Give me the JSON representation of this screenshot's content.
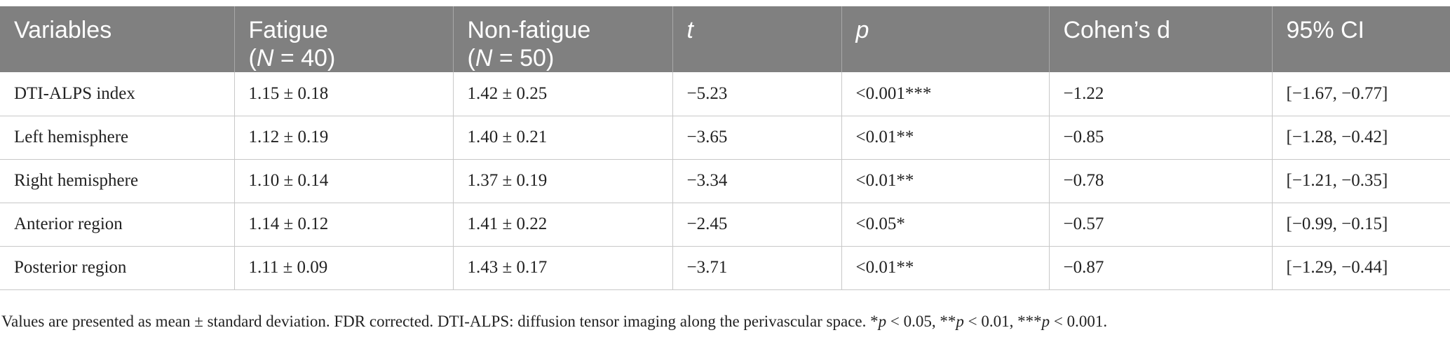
{
  "table": {
    "header": [
      [
        [
          {
            "text": "Variables",
            "italic": false
          }
        ]
      ],
      [
        [
          {
            "text": "Fatigue",
            "italic": false
          }
        ],
        [
          {
            "text": "(",
            "italic": false
          },
          {
            "text": "N",
            "italic": true
          },
          {
            "text": " = 40)",
            "italic": false
          }
        ]
      ],
      [
        [
          {
            "text": "Non-fatigue",
            "italic": false
          }
        ],
        [
          {
            "text": "(",
            "italic": false
          },
          {
            "text": "N",
            "italic": true
          },
          {
            "text": " = 50)",
            "italic": false
          }
        ]
      ],
      [
        [
          {
            "text": "t",
            "italic": true
          }
        ]
      ],
      [
        [
          {
            "text": "p",
            "italic": true
          }
        ]
      ],
      [
        [
          {
            "text": "Cohen’s d",
            "italic": false
          }
        ]
      ],
      [
        [
          {
            "text": "95% CI",
            "italic": false
          }
        ]
      ]
    ],
    "rows": [
      [
        "DTI-ALPS index",
        "1.15 ± 0.18",
        "1.42 ± 0.25",
        "−5.23",
        "<0.001***",
        "−1.22",
        "[−1.67, −0.77]"
      ],
      [
        "Left hemisphere",
        "1.12 ± 0.19",
        "1.40 ± 0.21",
        "−3.65",
        "<0.01**",
        "−0.85",
        "[−1.28, −0.42]"
      ],
      [
        "Right hemisphere",
        "1.10 ± 0.14",
        "1.37 ± 0.19",
        "−3.34",
        "<0.01**",
        "−0.78",
        "[−1.21, −0.35]"
      ],
      [
        "Anterior region",
        "1.14 ± 0.12",
        "1.41 ± 0.22",
        "−2.45",
        "<0.05*",
        "−0.57",
        "[−0.99, −0.15]"
      ],
      [
        "Posterior region",
        "1.11 ± 0.09",
        "1.43 ± 0.17",
        "−3.71",
        "<0.01**",
        "−0.87",
        "[−1.29, −0.44]"
      ]
    ],
    "footnote": [
      {
        "text": "Values are presented as mean ± standard deviation. FDR corrected. DTI-ALPS: diffusion tensor imaging along the perivascular space. *",
        "italic": false
      },
      {
        "text": "p",
        "italic": true
      },
      {
        "text": " < 0.05, **",
        "italic": false
      },
      {
        "text": "p",
        "italic": true
      },
      {
        "text": " < 0.01, ***",
        "italic": false
      },
      {
        "text": "p",
        "italic": true
      },
      {
        "text": " < 0.001.",
        "italic": false
      }
    ]
  }
}
